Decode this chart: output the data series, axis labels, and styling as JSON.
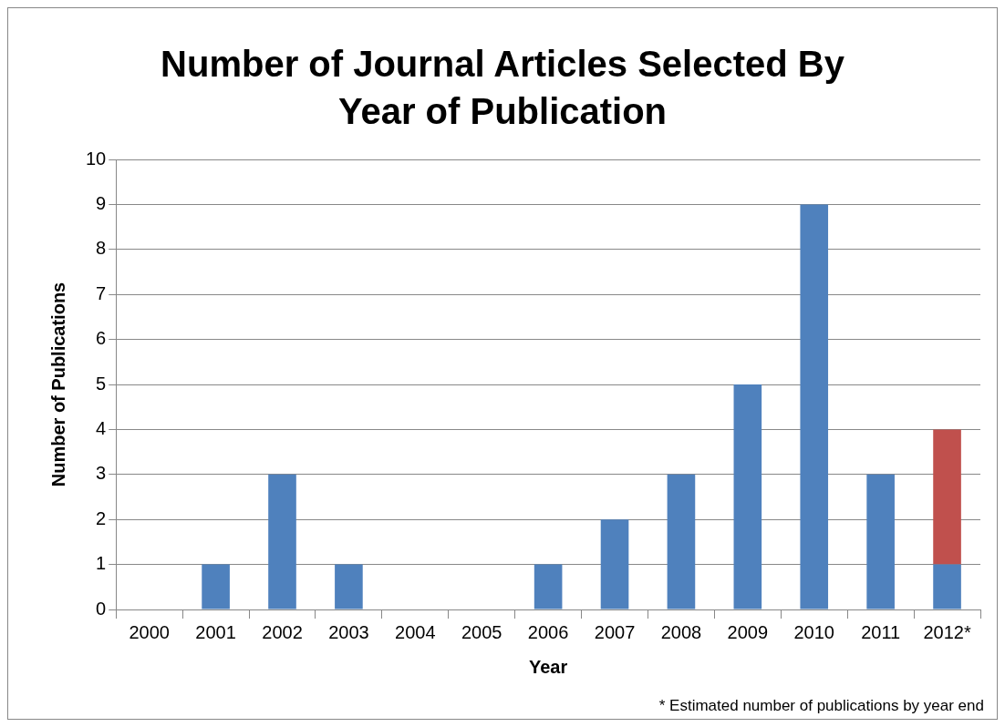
{
  "chart_data": {
    "type": "bar",
    "title": "Number of Journal Articles Selected By Year of Publication",
    "xlabel": "Year",
    "ylabel": "Number of Publications",
    "categories": [
      "2000",
      "2001",
      "2002",
      "2003",
      "2004",
      "2005",
      "2006",
      "2007",
      "2008",
      "2009",
      "2010",
      "2011",
      "2012*"
    ],
    "series": [
      {
        "color": "#4f81bd",
        "values": [
          0,
          1,
          3,
          1,
          0,
          0,
          1,
          2,
          3,
          5,
          9,
          3,
          1
        ]
      },
      {
        "color": "#c0504d",
        "values": [
          null,
          null,
          null,
          null,
          null,
          null,
          null,
          null,
          null,
          null,
          null,
          null,
          3
        ]
      }
    ],
    "stacked": true,
    "ylim": [
      0,
      10
    ],
    "yticks": [
      0,
      1,
      2,
      3,
      4,
      5,
      6,
      7,
      8,
      9,
      10
    ],
    "grid": "y",
    "legend": false,
    "annotations": [
      "* Estimated number of publications by year end"
    ]
  }
}
